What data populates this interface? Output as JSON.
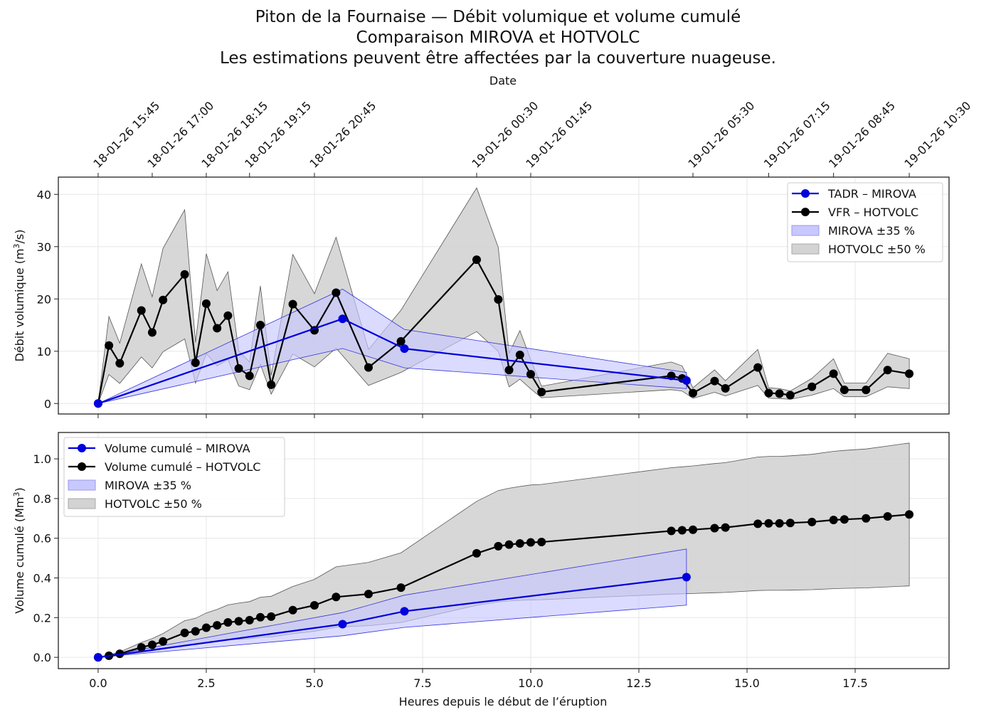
{
  "title": {
    "line1": "Piton de la Fournaise — Débit volumique et volume cumulé",
    "line2": "Comparaison MIROVA et HOTVOLC",
    "line3": "Les estimations peuvent être affectées par la couverture nuageuse."
  },
  "colors": {
    "mirova": "#0000dd",
    "mirova_band": "#c8c8ff",
    "hotvolc": "#000000",
    "hotvolc_band": "#d3d3d3"
  },
  "chart_data": [
    {
      "type": "line",
      "panel": "top",
      "title": "",
      "xlabel": "",
      "ylabel": "Débit volumique (m³/s)",
      "ylabel_main": "Débit volumique (m",
      "ylabel_sup": "3",
      "ylabel_tail": "/s)",
      "top_axis_label": "Date",
      "top_ticks": [
        {
          "x": 0.0,
          "label": "18-01-26 15:45"
        },
        {
          "x": 1.25,
          "label": "18-01-26 17:00"
        },
        {
          "x": 2.5,
          "label": "18-01-26 18:15"
        },
        {
          "x": 3.5,
          "label": "18-01-26 19:15"
        },
        {
          "x": 5.0,
          "label": "18-01-26 20:45"
        },
        {
          "x": 8.75,
          "label": "19-01-26 00:30"
        },
        {
          "x": 10.0,
          "label": "19-01-26 01:45"
        },
        {
          "x": 13.75,
          "label": "19-01-26 05:30"
        },
        {
          "x": 15.5,
          "label": "19-01-26 07:15"
        },
        {
          "x": 17.0,
          "label": "19-01-26 08:45"
        },
        {
          "x": 18.75,
          "label": "19-01-26 10:30"
        }
      ],
      "xlim": [
        -0.92,
        19.67
      ],
      "ylim": [
        -2.0,
        43.3
      ],
      "xticks": [
        0.0,
        2.5,
        5.0,
        7.5,
        10.0,
        12.5,
        15.0,
        17.5
      ],
      "yticks": [
        0,
        10,
        20,
        30,
        40
      ],
      "ytick_labels": [
        "0",
        "10",
        "20",
        "30",
        "40"
      ],
      "grid": true,
      "legend_position": "top-right",
      "series": [
        {
          "name": "TADR – MIROVA",
          "color": "#0000dd",
          "band_pct": 35,
          "band_name": "MIROVA ±35 %",
          "x": [
            0.0,
            5.65,
            7.08,
            13.6
          ],
          "y": [
            0.0,
            16.2,
            10.5,
            4.4
          ]
        },
        {
          "name": "VFR – HOTVOLC",
          "color": "#000000",
          "band_pct": 50,
          "band_name": "HOTVOLC ±50 %",
          "x": [
            0.0,
            0.25,
            0.5,
            1.0,
            1.25,
            1.5,
            2.0,
            2.25,
            2.5,
            2.75,
            3.0,
            3.25,
            3.5,
            3.75,
            4.0,
            4.5,
            5.0,
            5.5,
            6.25,
            7.0,
            8.75,
            9.25,
            9.5,
            9.75,
            10.0,
            10.25,
            13.25,
            13.5,
            13.75,
            14.25,
            14.5,
            15.25,
            15.5,
            15.75,
            16.0,
            16.5,
            17.0,
            17.25,
            17.75,
            18.25,
            18.75
          ],
          "y": [
            0.0,
            11.1,
            7.7,
            17.8,
            13.6,
            19.8,
            24.7,
            7.8,
            19.1,
            14.4,
            16.8,
            6.7,
            5.3,
            15.0,
            3.6,
            19.0,
            14.0,
            21.2,
            6.9,
            11.9,
            27.5,
            19.9,
            6.4,
            9.3,
            5.6,
            2.2,
            5.3,
            4.8,
            2.0,
            4.3,
            2.9,
            6.9,
            2.0,
            1.9,
            1.6,
            3.2,
            5.7,
            2.6,
            2.6,
            6.4,
            5.7
          ]
        }
      ]
    },
    {
      "type": "line",
      "panel": "bottom",
      "title": "",
      "xlabel": "Heures depuis le début de l’éruption",
      "ylabel": "Volume cumulé (Mm³)",
      "ylabel_main": "Volume cumulé (Mm",
      "ylabel_sup": "3",
      "ylabel_tail": ")",
      "xlim": [
        -0.92,
        19.67
      ],
      "ylim": [
        -0.057,
        1.133
      ],
      "xticks": [
        0.0,
        2.5,
        5.0,
        7.5,
        10.0,
        12.5,
        15.0,
        17.5
      ],
      "xtick_labels": [
        "0.0",
        "2.5",
        "5.0",
        "7.5",
        "10.0",
        "12.5",
        "15.0",
        "17.5"
      ],
      "yticks": [
        0.0,
        0.2,
        0.4,
        0.6,
        0.8,
        1.0
      ],
      "ytick_labels": [
        "0.0",
        "0.2",
        "0.4",
        "0.6",
        "0.8",
        "1.0"
      ],
      "grid": true,
      "legend_position": "top-left",
      "series": [
        {
          "name": "Volume cumulé – MIROVA",
          "color": "#0000dd",
          "band_pct": 35,
          "band_name": "MIROVA ±35 %",
          "x": [
            0.0,
            5.65,
            7.08,
            13.6
          ],
          "y": [
            0.0,
            0.167,
            0.232,
            0.404
          ]
        },
        {
          "name": "Volume cumulé – HOTVOLC",
          "color": "#000000",
          "band_pct": 50,
          "band_name": "HOTVOLC ±50 %",
          "x": [
            0.0,
            0.25,
            0.5,
            1.0,
            1.25,
            1.5,
            2.0,
            2.25,
            2.5,
            2.75,
            3.0,
            3.25,
            3.5,
            3.75,
            4.0,
            4.5,
            5.0,
            5.5,
            6.25,
            7.0,
            8.75,
            9.25,
            9.5,
            9.75,
            10.0,
            10.25,
            13.25,
            13.5,
            13.75,
            14.25,
            14.5,
            15.25,
            15.5,
            15.75,
            16.0,
            16.5,
            17.0,
            17.25,
            17.75,
            18.25,
            18.75
          ],
          "y": [
            0.0,
            0.008,
            0.018,
            0.05,
            0.063,
            0.08,
            0.123,
            0.131,
            0.149,
            0.161,
            0.176,
            0.182,
            0.187,
            0.202,
            0.205,
            0.238,
            0.262,
            0.304,
            0.319,
            0.351,
            0.524,
            0.56,
            0.568,
            0.574,
            0.579,
            0.581,
            0.637,
            0.64,
            0.643,
            0.651,
            0.654,
            0.673,
            0.675,
            0.675,
            0.677,
            0.682,
            0.692,
            0.695,
            0.7,
            0.71,
            0.72
          ]
        }
      ]
    }
  ]
}
